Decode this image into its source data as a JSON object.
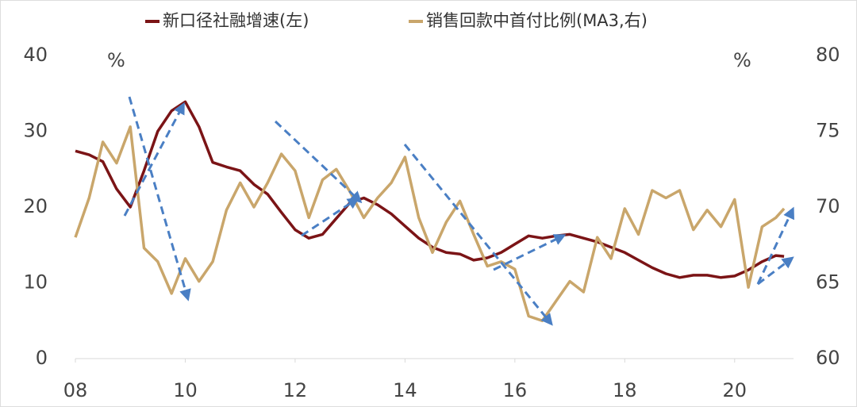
{
  "chart_data": {
    "type": "line",
    "x": [
      8.0,
      8.25,
      8.5,
      8.75,
      9.0,
      9.25,
      9.5,
      9.75,
      10.0,
      10.25,
      10.5,
      10.75,
      11.0,
      11.25,
      11.5,
      11.75,
      12.0,
      12.25,
      12.5,
      12.75,
      13.0,
      13.25,
      13.5,
      13.75,
      14.0,
      14.25,
      14.5,
      14.75,
      15.0,
      15.25,
      15.5,
      15.75,
      16.0,
      16.25,
      16.5,
      16.75,
      17.0,
      17.25,
      17.5,
      17.75,
      18.0,
      18.25,
      18.5,
      18.75,
      19.0,
      19.25,
      19.5,
      19.75,
      20.0,
      20.25,
      20.5,
      20.75,
      20.9
    ],
    "series": [
      {
        "name": "新口径社融增速(左)",
        "color": "#7b1416",
        "axis": "y",
        "values": [
          27.4,
          26.9,
          26,
          22.4,
          20,
          24.8,
          30,
          32.7,
          33.9,
          30.6,
          25.9,
          25.3,
          24.8,
          23,
          21.7,
          19.3,
          17,
          15.9,
          16.4,
          18.5,
          20.6,
          21.2,
          20.3,
          19.1,
          17.5,
          15.9,
          14.7,
          14,
          13.8,
          13,
          13.3,
          14,
          15.1,
          16.2,
          15.9,
          16.2,
          16.4,
          15.9,
          15.4,
          14.7,
          14,
          13,
          12,
          11.2,
          10.7,
          11,
          11,
          10.7,
          10.9,
          11.7,
          12.8,
          13.6,
          13.5
        ]
      },
      {
        "name": "销售回款中首付比例(MA3,右)",
        "color": "#c9a66b",
        "axis": "y2",
        "values": [
          68,
          70.6,
          74.3,
          72.9,
          75.3,
          67.3,
          66.4,
          64.3,
          66.6,
          65.1,
          66.4,
          69.8,
          71.6,
          70,
          71.6,
          73.5,
          72.4,
          69.3,
          71.8,
          72.5,
          71,
          69.3,
          70.6,
          71.6,
          73.3,
          69.3,
          67,
          69,
          70.4,
          68.2,
          66.1,
          66.4,
          65.9,
          62.8,
          62.5,
          63.8,
          65.1,
          64.4,
          68,
          66.6,
          69.9,
          68.2,
          71.1,
          70.6,
          71.1,
          68.5,
          69.8,
          68.7,
          70.5,
          64.7,
          68.7,
          69.3,
          69.9
        ]
      }
    ],
    "xlim": [
      8,
      21
    ],
    "xticks": [
      {
        "value": 8,
        "label": "08"
      },
      10,
      12,
      14,
      16,
      18,
      20
    ],
    "ylim": [
      0,
      40
    ],
    "yticks": [
      0,
      10,
      20,
      30,
      40
    ],
    "y2lim": [
      60,
      80
    ],
    "y2ticks": [
      60,
      65,
      70,
      75,
      80
    ],
    "y_unit": "%",
    "y2_unit": "%",
    "legend": "top"
  }
}
